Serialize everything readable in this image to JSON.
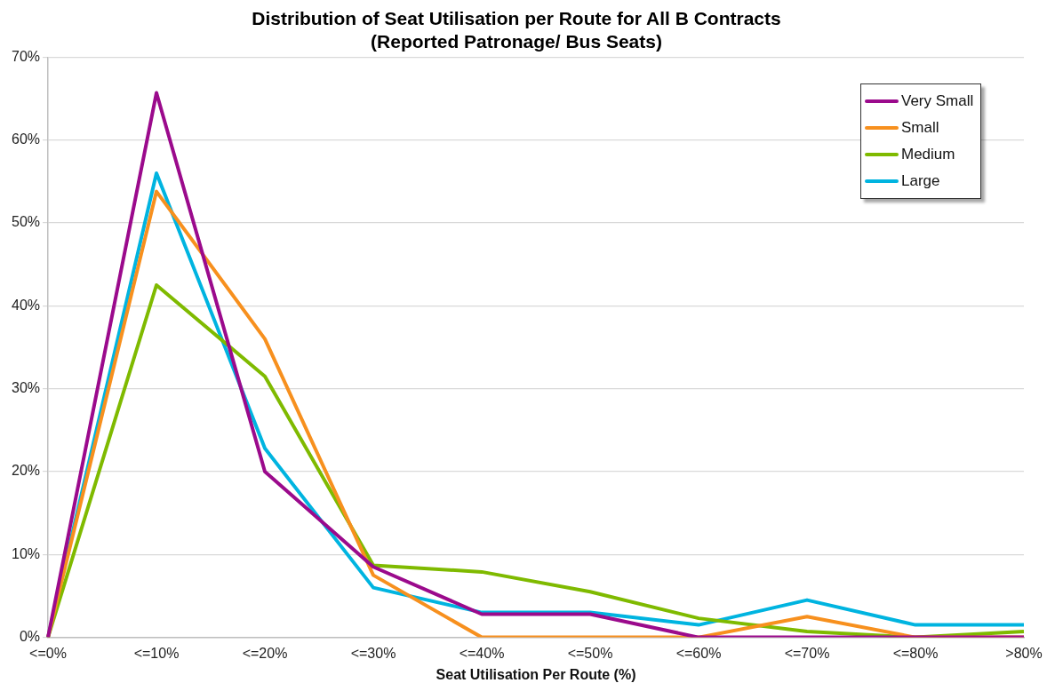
{
  "chart_data": {
    "type": "line",
    "title": [
      "Distribution of Seat Utilisation per Route for All B Contracts",
      "(Reported Patronage/ Bus Seats)"
    ],
    "xlabel": "Seat Utilisation Per Route (%)",
    "categories": [
      "<=0%",
      "<=10%",
      "<=20%",
      "<=30%",
      "<=40%",
      "<=50%",
      "<=60%",
      "<=70%",
      "<=80%",
      ">80%"
    ],
    "series": [
      {
        "name": "Very Small",
        "color": "#9b0a8c",
        "values": [
          0,
          65.7,
          20.0,
          8.5,
          2.8,
          2.8,
          0,
          0,
          0,
          0
        ]
      },
      {
        "name": "Small",
        "color": "#f7901e",
        "values": [
          0,
          53.8,
          36.0,
          7.5,
          0,
          0,
          0,
          2.5,
          0,
          0
        ]
      },
      {
        "name": "Medium",
        "color": "#7fba00",
        "values": [
          0,
          42.5,
          31.5,
          8.7,
          7.9,
          5.5,
          2.3,
          0.7,
          0,
          0.7
        ]
      },
      {
        "name": "Large",
        "color": "#00b4e0",
        "values": [
          0,
          56.0,
          22.8,
          6.0,
          3.0,
          3.0,
          1.5,
          4.5,
          1.5,
          1.5
        ]
      }
    ],
    "ylim": [
      0,
      70
    ],
    "yticks": [
      {
        "value": 0,
        "label": "0%"
      },
      {
        "value": 10,
        "label": "10%"
      },
      {
        "value": 20,
        "label": "20%"
      },
      {
        "value": 30,
        "label": "30%"
      },
      {
        "value": 40,
        "label": "40%"
      },
      {
        "value": 50,
        "label": "50%"
      },
      {
        "value": 60,
        "label": "60%"
      },
      {
        "value": 70,
        "label": "70%"
      }
    ],
    "grid": "y",
    "legend": "top right",
    "marker": "none",
    "line_style": "solid"
  }
}
